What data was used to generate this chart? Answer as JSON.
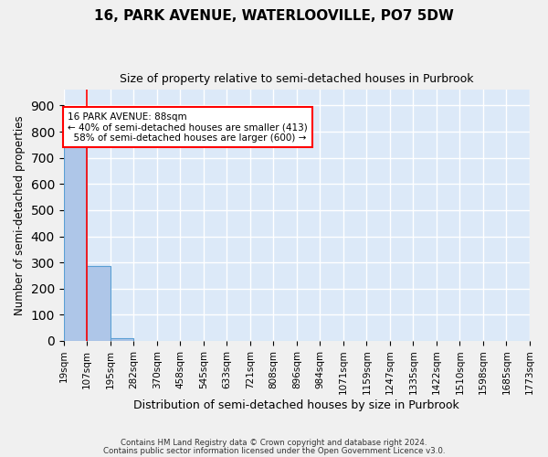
{
  "title": "16, PARK AVENUE, WATERLOOVILLE, PO7 5DW",
  "subtitle": "Size of property relative to semi-detached houses in Purbrook",
  "xlabel": "Distribution of semi-detached houses by size in Purbrook",
  "ylabel": "Number of semi-detached properties",
  "bin_labels": [
    "19sqm",
    "107sqm",
    "195sqm",
    "282sqm",
    "370sqm",
    "458sqm",
    "545sqm",
    "633sqm",
    "721sqm",
    "808sqm",
    "896sqm",
    "984sqm",
    "1071sqm",
    "1159sqm",
    "1247sqm",
    "1335sqm",
    "1422sqm",
    "1510sqm",
    "1598sqm",
    "1685sqm",
    "1773sqm"
  ],
  "bar_heights": [
    760,
    285,
    10,
    0,
    0,
    0,
    0,
    0,
    0,
    0,
    0,
    0,
    0,
    0,
    0,
    0,
    0,
    0,
    0,
    0
  ],
  "bar_color": "#aec6e8",
  "bar_edgecolor": "#5a9fd4",
  "red_line_x": 1,
  "property_sqm": 88,
  "pct_smaller": 40,
  "count_smaller": 413,
  "pct_larger": 58,
  "count_larger": 600,
  "ylim": [
    0,
    960
  ],
  "yticks": [
    0,
    100,
    200,
    300,
    400,
    500,
    600,
    700,
    800,
    900
  ],
  "background_color": "#dce9f8",
  "grid_color": "#ffffff",
  "footnote1": "Contains HM Land Registry data © Crown copyright and database right 2024.",
  "footnote2": "Contains public sector information licensed under the Open Government Licence v3.0."
}
